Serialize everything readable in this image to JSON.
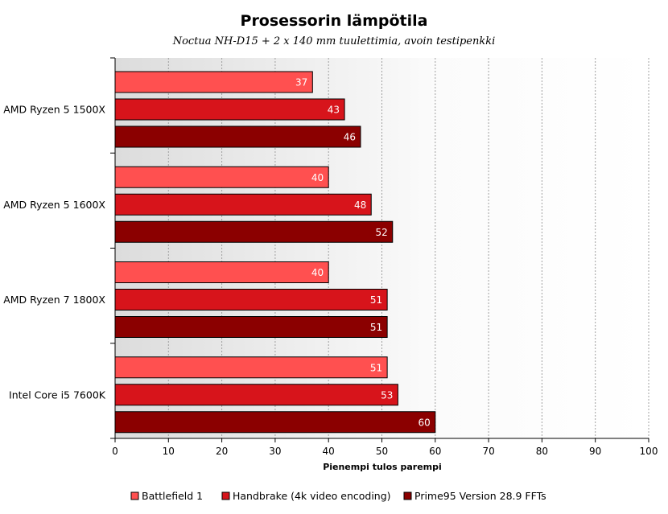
{
  "chart_data": {
    "type": "bar",
    "orientation": "horizontal",
    "title": "Prosessorin lämpötila",
    "subtitle": "Noctua  NH-D15 + 2 x 140 mm tuulettimia, avoin testipenkki",
    "xlabel": "Pienempi tulos parempi",
    "ylabel": "",
    "xlim": [
      0,
      100
    ],
    "ticks": [
      0,
      10,
      20,
      30,
      40,
      50,
      60,
      70,
      80,
      90,
      100
    ],
    "grid": true,
    "legend_position": "bottom",
    "categories": [
      "AMD Ryzen 5 1500X",
      "AMD Ryzen 5 1600X",
      "AMD Ryzen 7 1800X",
      "Intel Core i5 7600K"
    ],
    "series": [
      {
        "name": "Battlefield 1",
        "color": "#ff5050",
        "values": [
          37,
          40,
          40,
          51
        ]
      },
      {
        "name": "Handbrake (4k video encoding)",
        "color": "#d7141b",
        "values": [
          43,
          48,
          51,
          53
        ]
      },
      {
        "name": "Prime95 Version 28.9 FFTs",
        "color": "#8b0000",
        "values": [
          46,
          52,
          51,
          60
        ]
      }
    ]
  }
}
